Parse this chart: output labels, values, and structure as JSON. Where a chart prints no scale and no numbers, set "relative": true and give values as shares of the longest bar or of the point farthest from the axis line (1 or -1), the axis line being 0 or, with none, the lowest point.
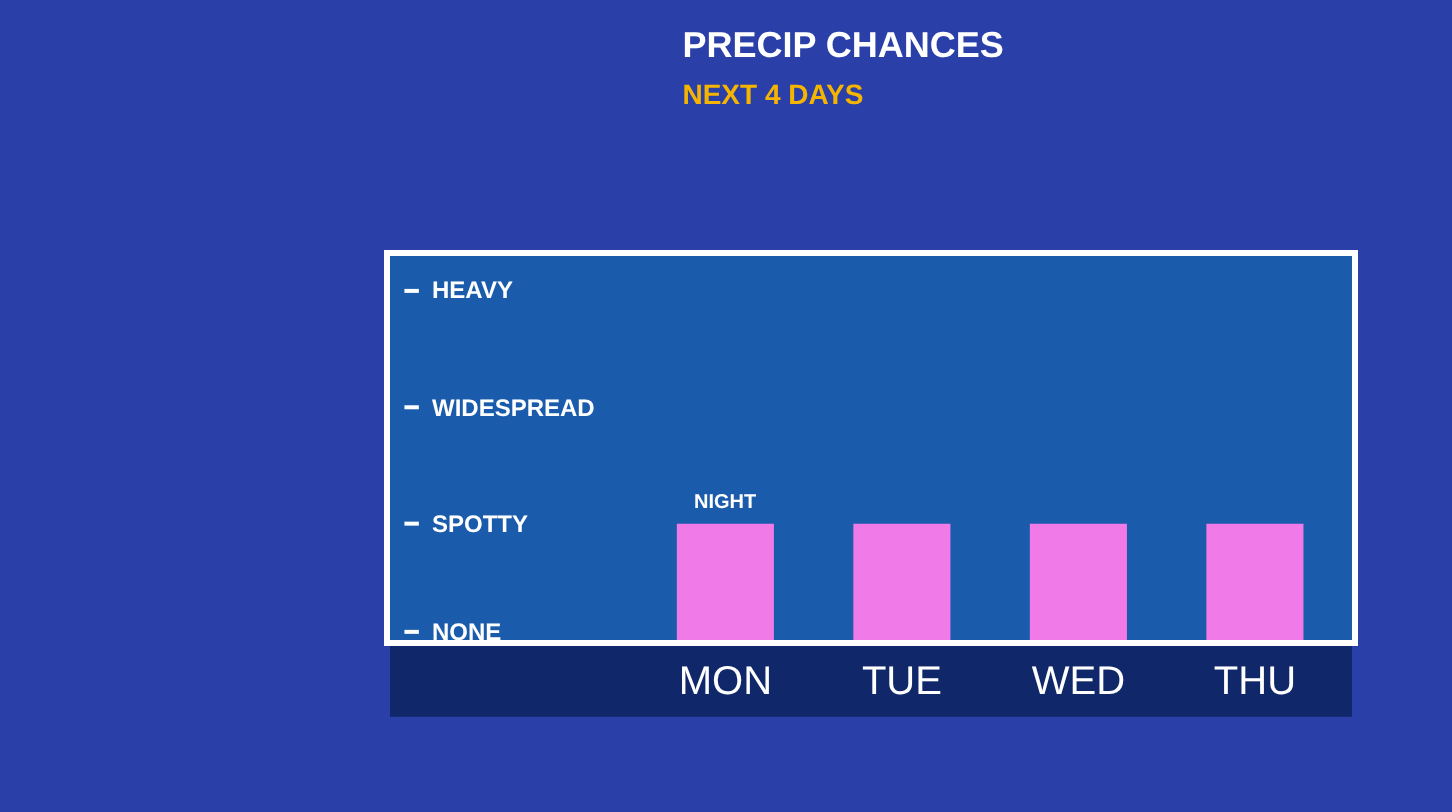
{
  "chart_data": {
    "type": "bar",
    "title": "PRECIP CHANCES",
    "subtitle": "NEXT 4 DAYS",
    "categories": [
      "MON",
      "TUE",
      "WED",
      "THU"
    ],
    "values": [
      1,
      1,
      1,
      1
    ],
    "color": "#f07ae8",
    "relative": true,
    "annotations": [
      "NONE",
      "SPOTTY",
      "WIDESPREAD",
      "HEAVY",
      {
        "text": "NIGHT",
        "x": "MON",
        "y": 1
      }
    ],
    "grid": false
  }
}
